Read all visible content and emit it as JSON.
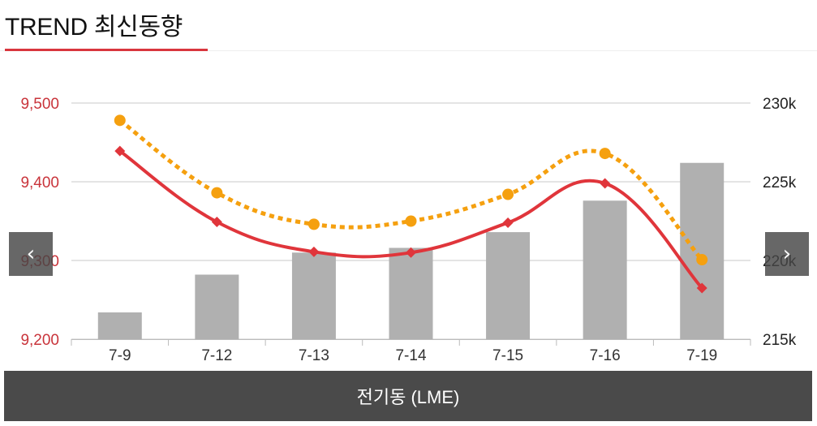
{
  "header": {
    "title": "TREND 최신동향"
  },
  "nav": {
    "prev_icon": "‹",
    "next_icon": "›"
  },
  "footer": {
    "label": "전기동 (LME)"
  },
  "colors": {
    "accent": "#d9363e",
    "price_line": "#e0353b",
    "dotted_line": "#f5a00f",
    "bar": "#b0b0b0",
    "grid": "#c8c8c8"
  },
  "chart_data": {
    "type": "bar+line",
    "categories": [
      "7-9",
      "7-12",
      "7-13",
      "7-14",
      "7-15",
      "7-16",
      "7-19"
    ],
    "left_axis": {
      "ylim": [
        9200,
        9500
      ],
      "ticks": [
        "9,200",
        "9,300",
        "9,400",
        "9,500"
      ],
      "tick_values": [
        9200,
        9300,
        9400,
        9500
      ]
    },
    "right_axis": {
      "ylim": [
        215000,
        230000
      ],
      "ticks": [
        "215k",
        "220k",
        "225k",
        "230k"
      ],
      "tick_values": [
        215000,
        220000,
        225000,
        230000
      ]
    },
    "series": [
      {
        "type": "bar",
        "axis": "right",
        "color": "#b0b0b0",
        "values": [
          216700,
          219100,
          220500,
          220800,
          221800,
          223800,
          226200
        ]
      },
      {
        "type": "line",
        "axis": "left",
        "style": "solid",
        "marker": "diamond",
        "color": "#e0353b",
        "values": [
          9439,
          9349,
          9311,
          9310,
          9348,
          9398,
          9265
        ]
      },
      {
        "type": "line",
        "axis": "left",
        "style": "dotted",
        "marker": "circle",
        "color": "#f5a00f",
        "values": [
          9478,
          9386,
          9346,
          9350,
          9384,
          9436,
          9301
        ]
      }
    ],
    "grid": true,
    "legend": "none"
  }
}
